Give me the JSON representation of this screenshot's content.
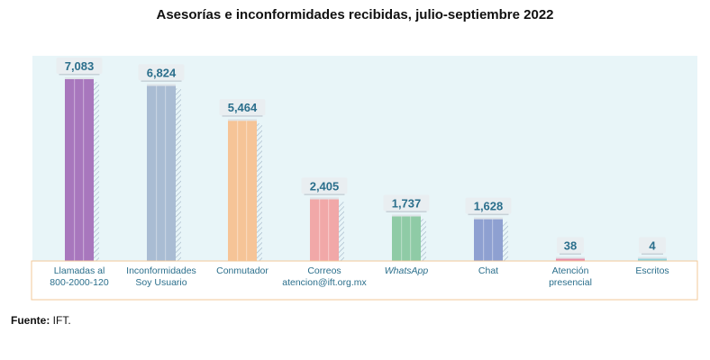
{
  "title": "Asesorías e inconformidades recibidas, julio-septiembre 2022",
  "source": {
    "label": "Fuente:",
    "text": " IFT."
  },
  "colors": {
    "plot_background": "#e8f5f8",
    "category_box_border": "#f3c99a",
    "value_label_text": "#2b6f8c",
    "value_label_background": "#e9eef1"
  },
  "chart_data": {
    "type": "bar",
    "categories": [
      [
        "Llamadas al",
        "800-2000-120"
      ],
      [
        "Inconformidades",
        "Soy Usuario"
      ],
      [
        "Conmutador"
      ],
      [
        "Correos",
        "atencion@ift.org.mx"
      ],
      [
        "WhatsApp"
      ],
      [
        "Chat"
      ],
      [
        "Atención",
        "presencial"
      ],
      [
        "Escritos"
      ]
    ],
    "italic_categories": [
      4
    ],
    "values": [
      7083,
      6824,
      5464,
      2405,
      1737,
      1628,
      38,
      4
    ],
    "value_labels": [
      "7,083",
      "6,824",
      "5,464",
      "2,405",
      "1,737",
      "1,628",
      "38",
      "4"
    ],
    "bar_colors": [
      "#a877bd",
      "#a9bcd3",
      "#f6c497",
      "#f1a8a8",
      "#8fcba6",
      "#8ea0d1",
      "#e98da9",
      "#8fd3dc"
    ],
    "ylim": [
      0,
      7083
    ],
    "grid": false,
    "legend": "none"
  }
}
